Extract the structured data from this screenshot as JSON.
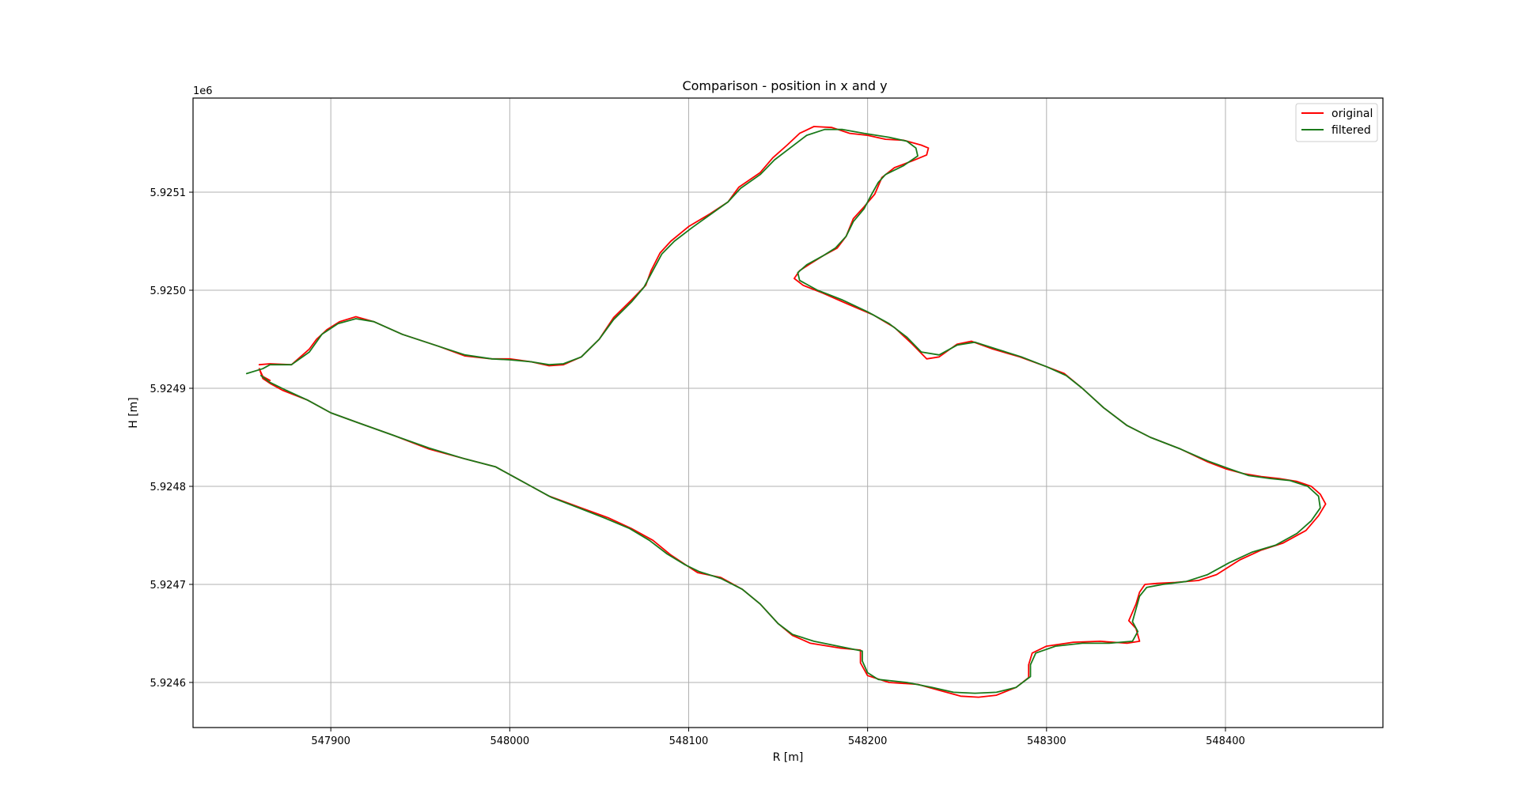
{
  "chart_data": {
    "type": "line",
    "title": "Comparison - position in x and y",
    "xlabel": "R [m]",
    "ylabel": "H [m]",
    "y_offset_label": "1e6",
    "xlim": [
      547823,
      548488
    ],
    "ylim": [
      5924554,
      5925196
    ],
    "x_ticks": [
      547900,
      548000,
      548100,
      548200,
      548300,
      548400
    ],
    "x_tick_labels": [
      "547900",
      "548000",
      "548100",
      "548200",
      "548300",
      "548400"
    ],
    "y_ticks": [
      5924600,
      5924700,
      5924800,
      5924900,
      5925000,
      5925100
    ],
    "y_tick_labels": [
      "5.9246",
      "5.9247",
      "5.9248",
      "5.9249",
      "5.9250",
      "5.9251"
    ],
    "grid": true,
    "legend_position": "top-right",
    "series": [
      {
        "name": "original",
        "color": "#ff0000",
        "points": [
          [
            547860,
            5924924
          ],
          [
            547866,
            5924925
          ],
          [
            547878,
            5924924
          ],
          [
            547888,
            5924940
          ],
          [
            547892,
            5924950
          ],
          [
            547898,
            5924960
          ],
          [
            547905,
            5924968
          ],
          [
            547914,
            5924973
          ],
          [
            547924,
            5924968
          ],
          [
            547940,
            5924955
          ],
          [
            547960,
            5924943
          ],
          [
            547975,
            5924933
          ],
          [
            547990,
            5924930
          ],
          [
            548000,
            5924930
          ],
          [
            548012,
            5924927
          ],
          [
            548022,
            5924923
          ],
          [
            548030,
            5924924
          ],
          [
            548040,
            5924932
          ],
          [
            548050,
            5924950
          ],
          [
            548058,
            5924972
          ],
          [
            548068,
            5924990
          ],
          [
            548076,
            5925005
          ],
          [
            548079,
            5925020
          ],
          [
            548084,
            5925038
          ],
          [
            548090,
            5925050
          ],
          [
            548100,
            5925065
          ],
          [
            548112,
            5925078
          ],
          [
            548122,
            5925090
          ],
          [
            548128,
            5925105
          ],
          [
            548140,
            5925120
          ],
          [
            548147,
            5925135
          ],
          [
            548155,
            5925148
          ],
          [
            548162,
            5925160
          ],
          [
            548170,
            5925167
          ],
          [
            548180,
            5925166
          ],
          [
            548190,
            5925160
          ],
          [
            548200,
            5925158
          ],
          [
            548210,
            5925154
          ],
          [
            548220,
            5925153
          ],
          [
            548230,
            5925148
          ],
          [
            548234,
            5925145
          ],
          [
            548233,
            5925138
          ],
          [
            548225,
            5925132
          ],
          [
            548215,
            5925125
          ],
          [
            548208,
            5925115
          ],
          [
            548204,
            5925098
          ],
          [
            548198,
            5925085
          ],
          [
            548192,
            5925073
          ],
          [
            548188,
            5925055
          ],
          [
            548183,
            5925043
          ],
          [
            548175,
            5925035
          ],
          [
            548168,
            5925027
          ],
          [
            548162,
            5925020
          ],
          [
            548159,
            5925012
          ],
          [
            548164,
            5925005
          ],
          [
            548175,
            5924997
          ],
          [
            548190,
            5924985
          ],
          [
            548203,
            5924975
          ],
          [
            548215,
            5924962
          ],
          [
            548225,
            5924945
          ],
          [
            548233,
            5924930
          ],
          [
            548240,
            5924932
          ],
          [
            548250,
            5924945
          ],
          [
            548258,
            5924948
          ],
          [
            548270,
            5924940
          ],
          [
            548285,
            5924932
          ],
          [
            548300,
            5924922
          ],
          [
            548310,
            5924915
          ],
          [
            548320,
            5924900
          ],
          [
            548332,
            5924880
          ],
          [
            548345,
            5924862
          ],
          [
            548358,
            5924850
          ],
          [
            548375,
            5924838
          ],
          [
            548390,
            5924825
          ],
          [
            548400,
            5924818
          ],
          [
            548410,
            5924813
          ],
          [
            548420,
            5924810
          ],
          [
            548430,
            5924808
          ],
          [
            548440,
            5924805
          ],
          [
            548448,
            5924800
          ],
          [
            548453,
            5924792
          ],
          [
            548456,
            5924782
          ],
          [
            548452,
            5924770
          ],
          [
            548445,
            5924755
          ],
          [
            548432,
            5924742
          ],
          [
            548420,
            5924735
          ],
          [
            548408,
            5924725
          ],
          [
            548395,
            5924710
          ],
          [
            548385,
            5924704
          ],
          [
            548372,
            5924702
          ],
          [
            548362,
            5924701
          ],
          [
            548355,
            5924700
          ],
          [
            548352,
            5924692
          ],
          [
            548350,
            5924680
          ],
          [
            548346,
            5924663
          ],
          [
            548350,
            5924655
          ],
          [
            548352,
            5924642
          ],
          [
            548345,
            5924640
          ],
          [
            548330,
            5924642
          ],
          [
            548315,
            5924641
          ],
          [
            548300,
            5924637
          ],
          [
            548292,
            5924630
          ],
          [
            548290,
            5924618
          ],
          [
            548290,
            5924605
          ],
          [
            548283,
            5924595
          ],
          [
            548272,
            5924587
          ],
          [
            548262,
            5924585
          ],
          [
            548252,
            5924586
          ],
          [
            548240,
            5924592
          ],
          [
            548228,
            5924598
          ],
          [
            548212,
            5924600
          ],
          [
            548200,
            5924607
          ],
          [
            548196,
            5924620
          ],
          [
            548196,
            5924633
          ],
          [
            548185,
            5924635
          ],
          [
            548168,
            5924640
          ],
          [
            548158,
            5924648
          ],
          [
            548150,
            5924660
          ],
          [
            548140,
            5924680
          ],
          [
            548130,
            5924695
          ],
          [
            548118,
            5924707
          ],
          [
            548105,
            5924712
          ],
          [
            548100,
            5924718
          ],
          [
            548090,
            5924730
          ],
          [
            548080,
            5924745
          ],
          [
            548068,
            5924757
          ],
          [
            548055,
            5924768
          ],
          [
            548040,
            5924778
          ],
          [
            548022,
            5924790
          ],
          [
            548012,
            5924800
          ],
          [
            548002,
            5924810
          ],
          [
            547992,
            5924820
          ],
          [
            547975,
            5924828
          ],
          [
            547955,
            5924838
          ],
          [
            547935,
            5924852
          ],
          [
            547915,
            5924865
          ],
          [
            547900,
            5924875
          ],
          [
            547887,
            5924888
          ],
          [
            547873,
            5924898
          ],
          [
            547866,
            5924905
          ],
          [
            547862,
            5924910
          ],
          [
            547860,
            5924920
          ],
          [
            547862,
            5924912
          ],
          [
            547866,
            5924908
          ]
        ]
      },
      {
        "name": "filtered",
        "color": "#1a7a1a",
        "points": [
          [
            547853,
            5924915
          ],
          [
            547862,
            5924920
          ],
          [
            547866,
            5924924
          ],
          [
            547878,
            5924924
          ],
          [
            547888,
            5924937
          ],
          [
            547895,
            5924955
          ],
          [
            547904,
            5924966
          ],
          [
            547914,
            5924971
          ],
          [
            547924,
            5924968
          ],
          [
            547940,
            5924955
          ],
          [
            547960,
            5924943
          ],
          [
            547975,
            5924934
          ],
          [
            547990,
            5924930
          ],
          [
            548000,
            5924929
          ],
          [
            548012,
            5924927
          ],
          [
            548022,
            5924924
          ],
          [
            548030,
            5924925
          ],
          [
            548040,
            5924932
          ],
          [
            548050,
            5924950
          ],
          [
            548058,
            5924970
          ],
          [
            548068,
            5924988
          ],
          [
            548075,
            5925003
          ],
          [
            548080,
            5925020
          ],
          [
            548085,
            5925037
          ],
          [
            548092,
            5925050
          ],
          [
            548102,
            5925064
          ],
          [
            548112,
            5925077
          ],
          [
            548122,
            5925090
          ],
          [
            548129,
            5925104
          ],
          [
            548140,
            5925118
          ],
          [
            548148,
            5925133
          ],
          [
            548158,
            5925147
          ],
          [
            548166,
            5925158
          ],
          [
            548176,
            5925164
          ],
          [
            548186,
            5925164
          ],
          [
            548198,
            5925160
          ],
          [
            548212,
            5925156
          ],
          [
            548222,
            5925152
          ],
          [
            548227,
            5925145
          ],
          [
            548228,
            5925137
          ],
          [
            548220,
            5925127
          ],
          [
            548210,
            5925118
          ],
          [
            548206,
            5925110
          ],
          [
            548202,
            5925097
          ],
          [
            548198,
            5925083
          ],
          [
            548192,
            5925070
          ],
          [
            548188,
            5925055
          ],
          [
            548182,
            5925043
          ],
          [
            548175,
            5925035
          ],
          [
            548166,
            5925026
          ],
          [
            548161,
            5925018
          ],
          [
            548162,
            5925010
          ],
          [
            548172,
            5925000
          ],
          [
            548186,
            5924990
          ],
          [
            548200,
            5924978
          ],
          [
            548212,
            5924966
          ],
          [
            548222,
            5924952
          ],
          [
            548230,
            5924937
          ],
          [
            548240,
            5924934
          ],
          [
            548250,
            5924944
          ],
          [
            548260,
            5924947
          ],
          [
            548272,
            5924940
          ],
          [
            548286,
            5924932
          ],
          [
            548300,
            5924922
          ],
          [
            548311,
            5924913
          ],
          [
            548320,
            5924900
          ],
          [
            548332,
            5924880
          ],
          [
            548345,
            5924862
          ],
          [
            548358,
            5924850
          ],
          [
            548375,
            5924838
          ],
          [
            548390,
            5924826
          ],
          [
            548402,
            5924818
          ],
          [
            548413,
            5924811
          ],
          [
            548425,
            5924808
          ],
          [
            548436,
            5924806
          ],
          [
            548446,
            5924800
          ],
          [
            548452,
            5924790
          ],
          [
            548453,
            5924778
          ],
          [
            548448,
            5924765
          ],
          [
            548440,
            5924752
          ],
          [
            548428,
            5924740
          ],
          [
            548415,
            5924733
          ],
          [
            548402,
            5924722
          ],
          [
            548390,
            5924710
          ],
          [
            548378,
            5924703
          ],
          [
            548365,
            5924700
          ],
          [
            548356,
            5924697
          ],
          [
            548352,
            5924688
          ],
          [
            548350,
            5924675
          ],
          [
            548348,
            5924662
          ],
          [
            548351,
            5924652
          ],
          [
            548348,
            5924642
          ],
          [
            548335,
            5924640
          ],
          [
            548320,
            5924640
          ],
          [
            548305,
            5924637
          ],
          [
            548294,
            5924630
          ],
          [
            548291,
            5924618
          ],
          [
            548291,
            5924606
          ],
          [
            548283,
            5924595
          ],
          [
            548272,
            5924590
          ],
          [
            548260,
            5924589
          ],
          [
            548248,
            5924590
          ],
          [
            548236,
            5924595
          ],
          [
            548222,
            5924600
          ],
          [
            548206,
            5924603
          ],
          [
            548200,
            5924610
          ],
          [
            548197,
            5924622
          ],
          [
            548197,
            5924632
          ],
          [
            548186,
            5924636
          ],
          [
            548170,
            5924642
          ],
          [
            548158,
            5924649
          ],
          [
            548150,
            5924660
          ],
          [
            548140,
            5924680
          ],
          [
            548130,
            5924695
          ],
          [
            548118,
            5924706
          ],
          [
            548106,
            5924713
          ],
          [
            548098,
            5924720
          ],
          [
            548088,
            5924731
          ],
          [
            548078,
            5924745
          ],
          [
            548067,
            5924757
          ],
          [
            548054,
            5924767
          ],
          [
            548040,
            5924777
          ],
          [
            548023,
            5924789
          ],
          [
            548012,
            5924800
          ],
          [
            548002,
            5924810
          ],
          [
            547992,
            5924820
          ],
          [
            547975,
            5924828
          ],
          [
            547955,
            5924839
          ],
          [
            547935,
            5924852
          ],
          [
            547915,
            5924865
          ],
          [
            547900,
            5924875
          ],
          [
            547887,
            5924888
          ],
          [
            547875,
            5924898
          ],
          [
            547866,
            5924906
          ],
          [
            547861,
            5924913
          ]
        ]
      }
    ]
  }
}
